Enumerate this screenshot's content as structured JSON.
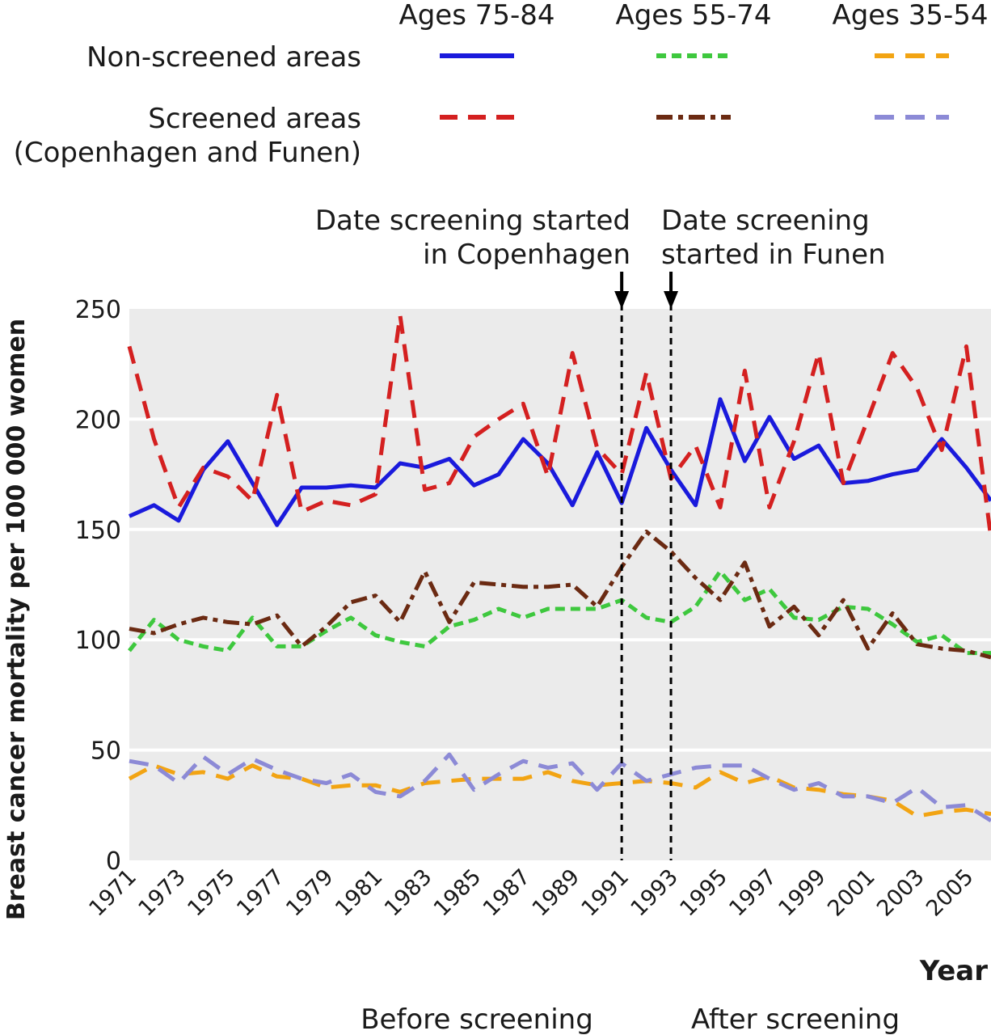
{
  "chart_data": {
    "type": "line",
    "title": "",
    "xlabel": "Year",
    "ylabel": "Breast cancer mortality per 100 000 women",
    "ylim": [
      0,
      250
    ],
    "yticks": [
      0,
      50,
      100,
      150,
      200,
      250
    ],
    "xlim": [
      1971,
      2006
    ],
    "xticks": [
      1971,
      1973,
      1975,
      1977,
      1979,
      1981,
      1983,
      1985,
      1987,
      1989,
      1991,
      1993,
      1995,
      1997,
      1999,
      2001,
      2003,
      2005
    ],
    "grid": true,
    "legend": {
      "column_headers": [
        "Ages 75-84",
        "Ages 55-74",
        "Ages 35-54"
      ],
      "row_labels": [
        "Non-screened areas",
        "Screened areas",
        "(Copenhagen and Funen)"
      ]
    },
    "annotations": {
      "copenhagen": {
        "year": 1991,
        "lines": [
          "Date screening started",
          "in Copenhagen"
        ]
      },
      "funen": {
        "year": 1993,
        "lines": [
          "Date screening",
          "started in Funen"
        ]
      },
      "before": "Before screening",
      "after": "After screening"
    },
    "x": [
      1971,
      1972,
      1973,
      1974,
      1975,
      1976,
      1977,
      1978,
      1979,
      1980,
      1981,
      1982,
      1983,
      1984,
      1985,
      1986,
      1987,
      1988,
      1989,
      1990,
      1991,
      1992,
      1993,
      1994,
      1995,
      1996,
      1997,
      1998,
      1999,
      2000,
      2001,
      2002,
      2003,
      2004,
      2005,
      2006
    ],
    "series": [
      {
        "name": "Non-screened areas, Ages 75-84",
        "color": "#1a1adc",
        "dash": "solid",
        "values": [
          156,
          161,
          154,
          177,
          190,
          171,
          152,
          169,
          169,
          170,
          169,
          180,
          178,
          182,
          170,
          175,
          191,
          180,
          161,
          185,
          162,
          196,
          177,
          161,
          209,
          181,
          201,
          182,
          188,
          171,
          172,
          175,
          177,
          191,
          178,
          163
        ]
      },
      {
        "name": "Screened areas, Ages 75-84",
        "color": "#d42020",
        "dash": "dash",
        "values": [
          233,
          191,
          160,
          178,
          174,
          163,
          211,
          158,
          163,
          161,
          166,
          247,
          168,
          171,
          192,
          200,
          207,
          174,
          230,
          187,
          175,
          221,
          173,
          188,
          160,
          222,
          160,
          190,
          230,
          171,
          200,
          230,
          214,
          186,
          233,
          146
        ]
      },
      {
        "name": "Non-screened areas, Ages 55-74",
        "color": "#3ec83e",
        "dash": "short-dash",
        "values": [
          95,
          109,
          100,
          97,
          95,
          110,
          97,
          97,
          104,
          110,
          102,
          99,
          97,
          106,
          109,
          114,
          110,
          114,
          114,
          114,
          118,
          110,
          108,
          115,
          131,
          118,
          123,
          110,
          109,
          115,
          114,
          107,
          99,
          102,
          94,
          94
        ]
      },
      {
        "name": "Screened areas, Ages 55-74",
        "color": "#6b2a12",
        "dash": "dash-dot",
        "values": [
          105,
          103,
          107,
          110,
          108,
          107,
          111,
          97,
          106,
          117,
          120,
          108,
          131,
          108,
          126,
          125,
          124,
          124,
          125,
          115,
          133,
          149,
          140,
          128,
          118,
          135,
          106,
          115,
          102,
          118,
          96,
          112,
          98,
          96,
          95,
          92
        ]
      },
      {
        "name": "Non-screened areas, Ages 35-54",
        "color": "#f2a413",
        "dash": "long-dash",
        "values": [
          37,
          43,
          39,
          40,
          37,
          43,
          38,
          37,
          33,
          34,
          34,
          31,
          35,
          36,
          37,
          37,
          37,
          40,
          36,
          34,
          35,
          36,
          35,
          33,
          40,
          35,
          38,
          33,
          32,
          30,
          29,
          27,
          20,
          22,
          23,
          21
        ]
      },
      {
        "name": "Screened areas, Ages 35-54",
        "color": "#8c8ad6",
        "dash": "long-dash",
        "values": [
          45,
          43,
          35,
          47,
          39,
          46,
          41,
          37,
          35,
          39,
          31,
          29,
          36,
          48,
          32,
          39,
          45,
          42,
          44,
          32,
          44,
          36,
          39,
          42,
          43,
          43,
          37,
          32,
          35,
          29,
          29,
          26,
          33,
          24,
          25,
          18
        ]
      }
    ]
  }
}
